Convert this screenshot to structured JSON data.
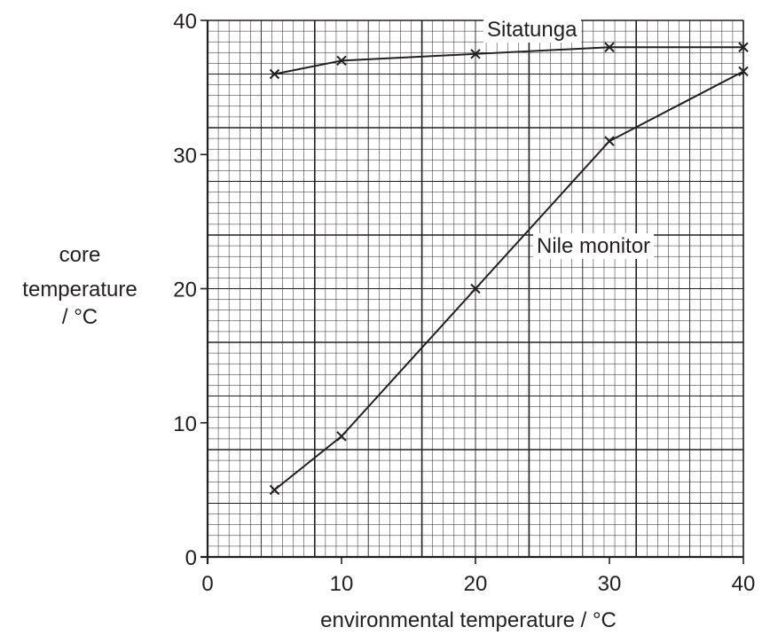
{
  "chart_data": {
    "type": "line",
    "xlabel": "environmental temperature / °C",
    "ylabel_lines": [
      "core",
      "temperature",
      "/ °C"
    ],
    "xlim": [
      0,
      40
    ],
    "ylim": [
      0,
      40
    ],
    "x_ticks": [
      0,
      10,
      20,
      30,
      40
    ],
    "y_ticks": [
      0,
      10,
      20,
      30,
      40
    ],
    "grid": true,
    "marker": "cross",
    "line_color": "#231f20",
    "grid_color": "#231f20",
    "series": [
      {
        "name": "Sitatunga",
        "x": [
          5,
          10,
          20,
          30,
          40
        ],
        "y": [
          36,
          37,
          37.5,
          38,
          38
        ]
      },
      {
        "name": "Nile monitor",
        "x": [
          5,
          10,
          20,
          30,
          40
        ],
        "y": [
          5,
          9,
          20,
          31,
          36.2
        ]
      }
    ]
  }
}
